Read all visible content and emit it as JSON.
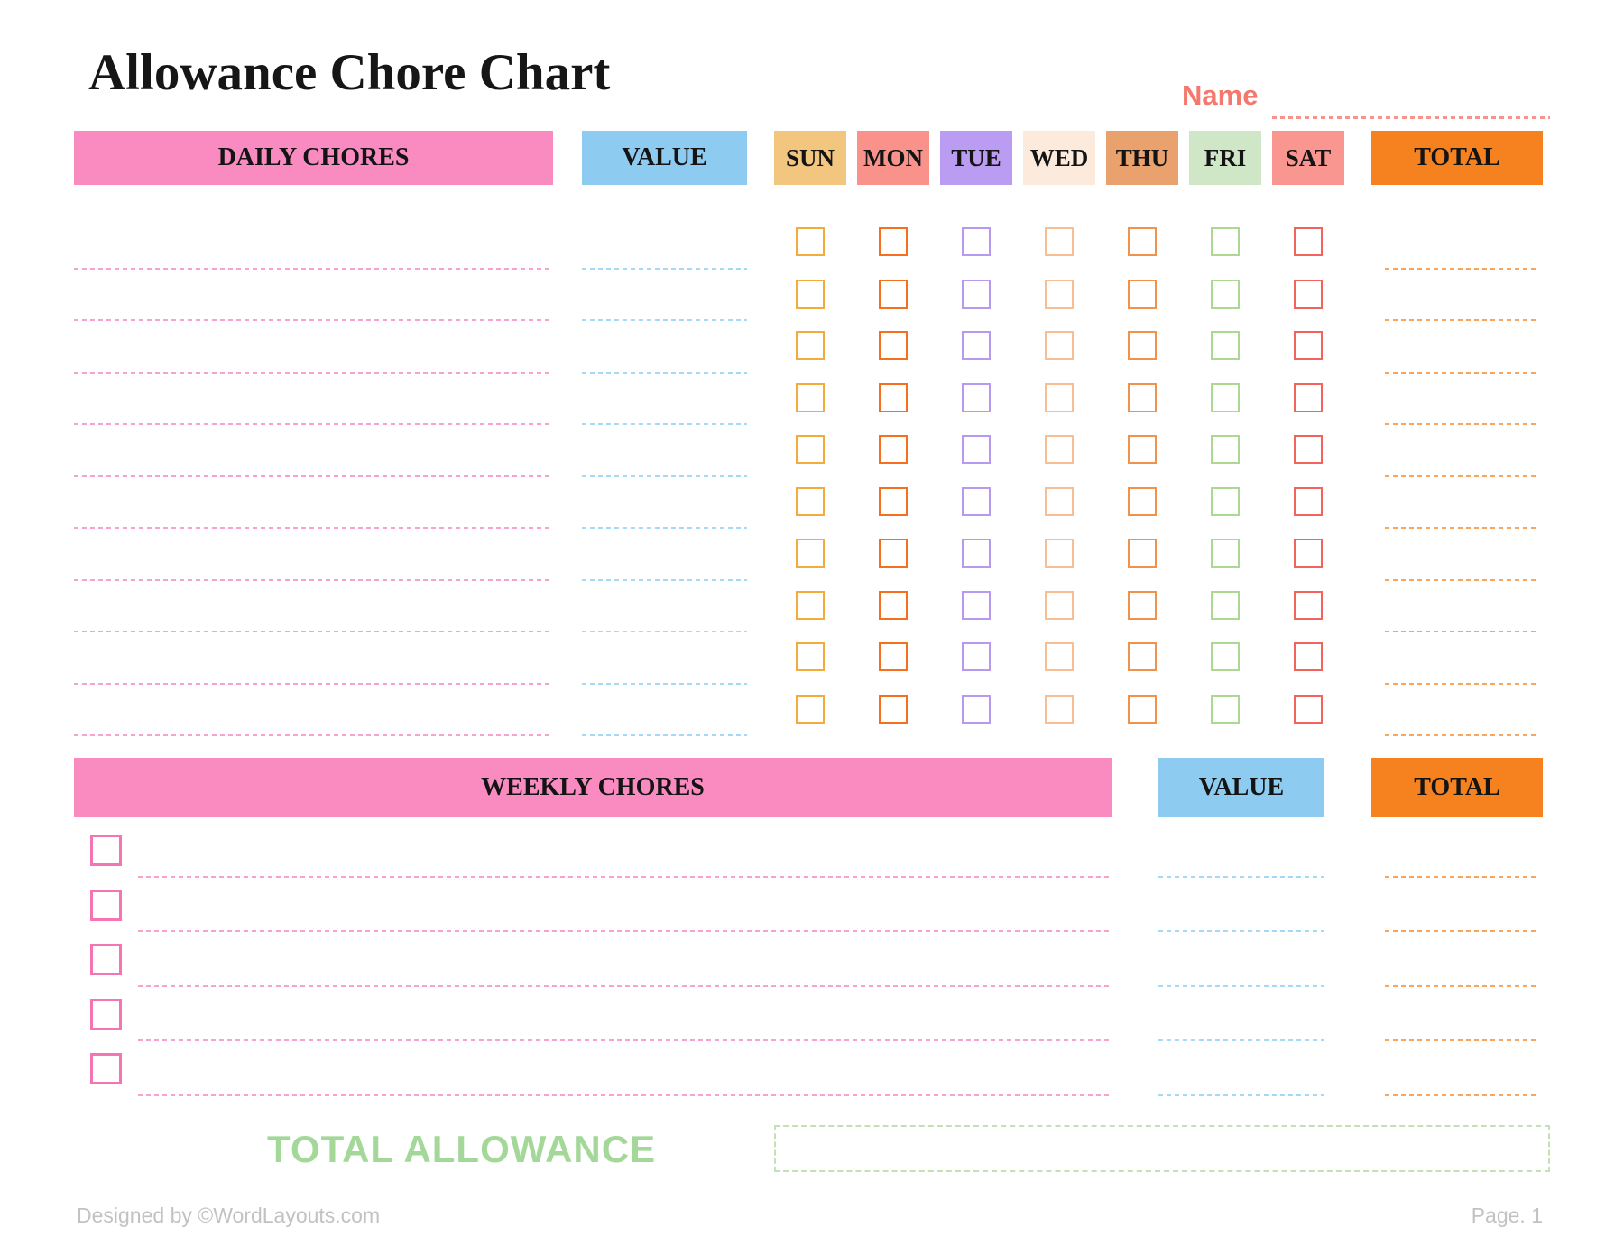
{
  "page": {
    "title": "Allowance Chore Chart"
  },
  "name_field": {
    "label": "Name",
    "value": ""
  },
  "daily": {
    "chores_header": "DAILY CHORES",
    "value_header": "VALUE",
    "total_header": "TOTAL",
    "days": [
      {
        "label": "SUN",
        "header_bg": "#F3C67F",
        "checkbox_color": "#F3AC3B"
      },
      {
        "label": "MON",
        "header_bg": "#F8928B",
        "checkbox_color": "#F4701D"
      },
      {
        "label": "TUE",
        "header_bg": "#BA9CF3",
        "checkbox_color": "#B79AF0"
      },
      {
        "label": "WED",
        "header_bg": "#FCEADC",
        "checkbox_color": "#F8BD92"
      },
      {
        "label": "THU",
        "header_bg": "#E9A16D",
        "checkbox_color": "#F0914C"
      },
      {
        "label": "FRI",
        "header_bg": "#D0E7C7",
        "checkbox_color": "#ABD893"
      },
      {
        "label": "SAT",
        "header_bg": "#F9968F",
        "checkbox_color": "#F3635D"
      }
    ],
    "rows": [
      {
        "chore": "",
        "value": "",
        "days": [
          "",
          "",
          "",
          "",
          "",
          "",
          ""
        ],
        "total": ""
      },
      {
        "chore": "",
        "value": "",
        "days": [
          "",
          "",
          "",
          "",
          "",
          "",
          ""
        ],
        "total": ""
      },
      {
        "chore": "",
        "value": "",
        "days": [
          "",
          "",
          "",
          "",
          "",
          "",
          ""
        ],
        "total": ""
      },
      {
        "chore": "",
        "value": "",
        "days": [
          "",
          "",
          "",
          "",
          "",
          "",
          ""
        ],
        "total": ""
      },
      {
        "chore": "",
        "value": "",
        "days": [
          "",
          "",
          "",
          "",
          "",
          "",
          ""
        ],
        "total": ""
      },
      {
        "chore": "",
        "value": "",
        "days": [
          "",
          "",
          "",
          "",
          "",
          "",
          ""
        ],
        "total": ""
      },
      {
        "chore": "",
        "value": "",
        "days": [
          "",
          "",
          "",
          "",
          "",
          "",
          ""
        ],
        "total": ""
      },
      {
        "chore": "",
        "value": "",
        "days": [
          "",
          "",
          "",
          "",
          "",
          "",
          ""
        ],
        "total": ""
      },
      {
        "chore": "",
        "value": "",
        "days": [
          "",
          "",
          "",
          "",
          "",
          "",
          ""
        ],
        "total": ""
      },
      {
        "chore": "",
        "value": "",
        "days": [
          "",
          "",
          "",
          "",
          "",
          "",
          ""
        ],
        "total": ""
      }
    ]
  },
  "weekly": {
    "chores_header": "WEEKLY CHORES",
    "value_header": "VALUE",
    "total_header": "TOTAL",
    "rows": [
      {
        "checked": "",
        "chore": "",
        "value": "",
        "total": ""
      },
      {
        "checked": "",
        "chore": "",
        "value": "",
        "total": ""
      },
      {
        "checked": "",
        "chore": "",
        "value": "",
        "total": ""
      },
      {
        "checked": "",
        "chore": "",
        "value": "",
        "total": ""
      },
      {
        "checked": "",
        "chore": "",
        "value": "",
        "total": ""
      }
    ]
  },
  "total_allowance": {
    "label": "TOTAL ALLOWANCE",
    "value": ""
  },
  "footer": {
    "designed_by": "Designed by ©WordLayouts.com",
    "page": "Page. 1"
  },
  "colors": {
    "header_pink": "#F98BC1",
    "header_blue": "#8DCBF0",
    "header_orange": "#F5821F",
    "daily_line_pink": "#F7A3CE",
    "value_line_blue": "#A5D9F6",
    "total_line_orange": "#F9A55E",
    "weekly_checkbox_pink": "#F474B4",
    "name_coral": "#F5786D",
    "total_allowance_green": "#A3D899",
    "allowance_box_border_green": "#C1E3B4",
    "footer_gray": "#C2C2C2"
  }
}
